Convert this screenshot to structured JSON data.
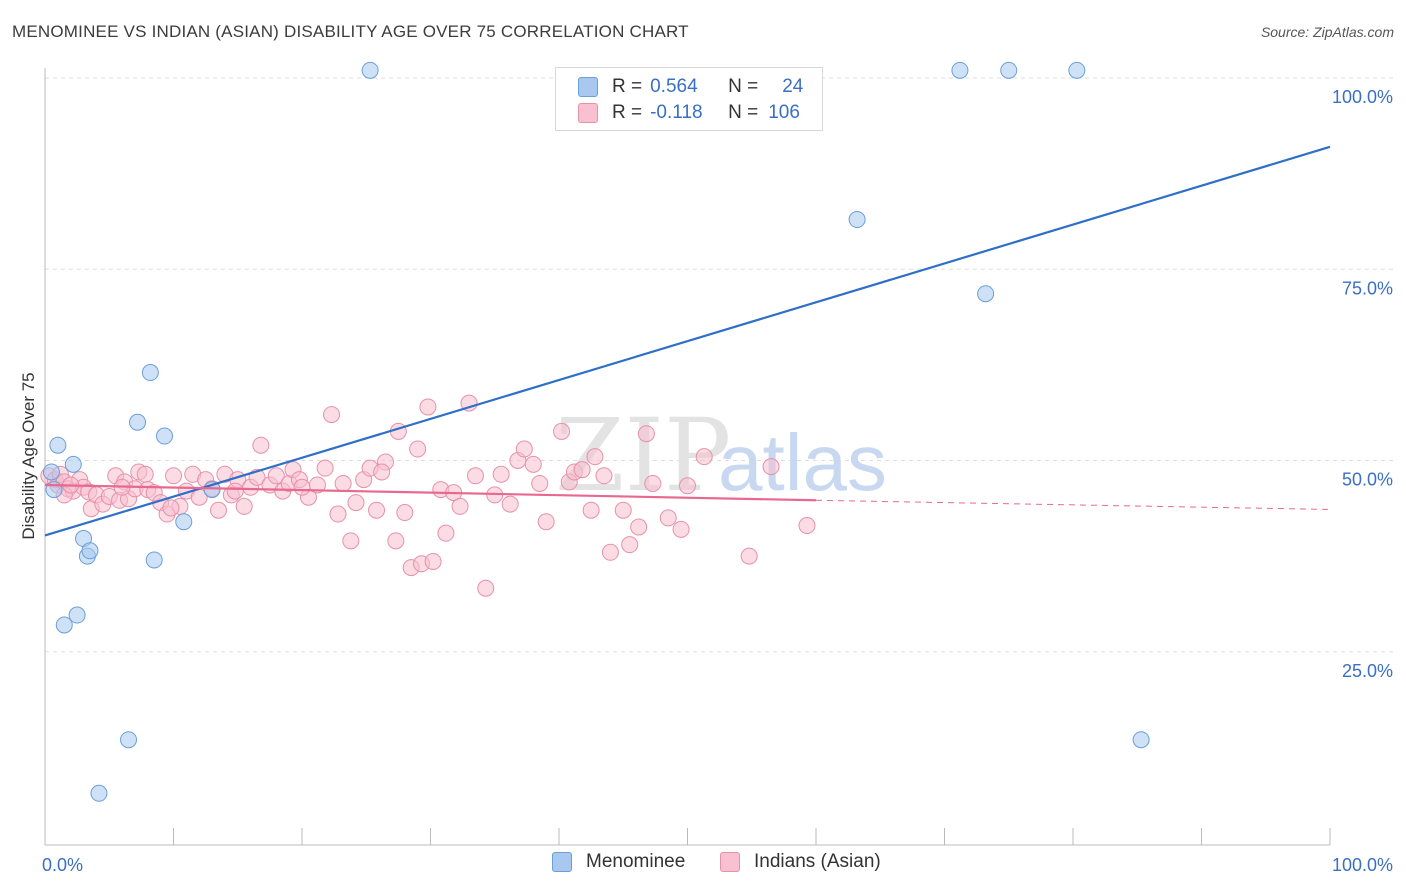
{
  "header": {
    "title": "MENOMINEE VS INDIAN (ASIAN) DISABILITY AGE OVER 75 CORRELATION CHART",
    "source": "Source: ZipAtlas.com"
  },
  "watermark": {
    "zip": "ZIP",
    "atlas": "atlas"
  },
  "legend_stats": [
    {
      "r_label": "R =",
      "r_value": "0.564",
      "n_label": "N =",
      "n_value": "24",
      "color": "#a8c8f0",
      "border": "#6a9fd8"
    },
    {
      "r_label": "R =",
      "r_value": "-0.118",
      "n_label": "N =",
      "n_value": "106",
      "color": "#f8c0d0",
      "border": "#e890aa"
    }
  ],
  "colors": {
    "blue_fill": "#a8c8f0",
    "blue_stroke": "#6a9fd8",
    "blue_line": "#2f6fc8",
    "pink_fill": "#f8c0d0",
    "pink_stroke": "#e890aa",
    "pink_line": "#e86890",
    "grid": "#dddddd",
    "tick_label": "#3a6fc4"
  },
  "chart_data": {
    "type": "scatter",
    "title": "MENOMINEE VS INDIAN (ASIAN) DISABILITY AGE OVER 75 CORRELATION CHART",
    "xlabel": "",
    "ylabel": "Disability Age Over 75",
    "xlim": [
      0,
      100
    ],
    "ylim": [
      0,
      103
    ],
    "x_tick_labels": [
      {
        "value": 0,
        "label": "0.0%"
      },
      {
        "value": 100,
        "label": "100.0%"
      }
    ],
    "y_tick_labels": [
      {
        "value": 25,
        "label": "25.0%"
      },
      {
        "value": 50,
        "label": "50.0%"
      },
      {
        "value": 75,
        "label": "75.0%"
      },
      {
        "value": 100,
        "label": "100.0%"
      }
    ],
    "grid": true,
    "legend_position": "bottom",
    "series": [
      {
        "name": "Menominee",
        "points": [
          [
            0.5,
            48.5
          ],
          [
            0.7,
            46.2
          ],
          [
            1.0,
            52.0
          ],
          [
            1.5,
            28.5
          ],
          [
            2.2,
            49.5
          ],
          [
            2.5,
            29.8
          ],
          [
            3.0,
            39.8
          ],
          [
            3.3,
            37.5
          ],
          [
            3.5,
            38.2
          ],
          [
            4.2,
            6.5
          ],
          [
            6.5,
            13.5
          ],
          [
            7.2,
            55.0
          ],
          [
            8.2,
            61.5
          ],
          [
            8.5,
            37.0
          ],
          [
            9.3,
            53.2
          ],
          [
            10.8,
            42.0
          ],
          [
            13.0,
            46.2
          ],
          [
            25.3,
            101.0
          ],
          [
            63.2,
            81.5
          ],
          [
            71.2,
            101.0
          ],
          [
            73.2,
            71.8
          ],
          [
            75.0,
            101.0
          ],
          [
            80.3,
            101.0
          ],
          [
            85.3,
            13.5
          ]
        ],
        "trend": {
          "x0": 0,
          "y0": 40.2,
          "x1": 100,
          "y1": 91.0
        }
      },
      {
        "name": "Indians (Asian)",
        "points": [
          [
            0.3,
            48.0
          ],
          [
            0.8,
            47.5
          ],
          [
            1.0,
            46.8
          ],
          [
            1.2,
            48.2
          ],
          [
            1.5,
            47.2
          ],
          [
            1.8,
            46.3
          ],
          [
            2.2,
            46.0
          ],
          [
            2.7,
            47.5
          ],
          [
            3.0,
            46.5
          ],
          [
            3.4,
            45.9
          ],
          [
            3.6,
            43.7
          ],
          [
            4.0,
            45.5
          ],
          [
            4.5,
            44.3
          ],
          [
            5.0,
            45.3
          ],
          [
            5.5,
            48.0
          ],
          [
            5.8,
            44.8
          ],
          [
            6.2,
            47.2
          ],
          [
            6.5,
            45.0
          ],
          [
            7.0,
            46.3
          ],
          [
            7.3,
            48.5
          ],
          [
            7.8,
            48.2
          ],
          [
            8.0,
            46.2
          ],
          [
            8.5,
            45.8
          ],
          [
            9.0,
            44.5
          ],
          [
            9.5,
            43.0
          ],
          [
            10.0,
            48.0
          ],
          [
            10.5,
            44.0
          ],
          [
            11.0,
            46.0
          ],
          [
            11.5,
            48.2
          ],
          [
            12.0,
            45.2
          ],
          [
            12.5,
            47.5
          ],
          [
            13.0,
            46.3
          ],
          [
            13.5,
            43.5
          ],
          [
            14.0,
            48.2
          ],
          [
            14.5,
            45.5
          ],
          [
            15.0,
            47.5
          ],
          [
            15.5,
            44.0
          ],
          [
            16.0,
            46.5
          ],
          [
            16.5,
            47.8
          ],
          [
            16.8,
            52.0
          ],
          [
            17.5,
            46.8
          ],
          [
            18.0,
            48.0
          ],
          [
            18.5,
            46.0
          ],
          [
            19.0,
            47.0
          ],
          [
            19.3,
            48.8
          ],
          [
            19.8,
            47.5
          ],
          [
            20.5,
            45.2
          ],
          [
            21.2,
            46.8
          ],
          [
            21.8,
            49.0
          ],
          [
            22.3,
            56.0
          ],
          [
            22.8,
            43.0
          ],
          [
            23.2,
            47.0
          ],
          [
            23.8,
            39.5
          ],
          [
            24.2,
            44.5
          ],
          [
            24.8,
            47.5
          ],
          [
            25.3,
            49.0
          ],
          [
            25.8,
            43.5
          ],
          [
            26.5,
            49.8
          ],
          [
            27.3,
            39.5
          ],
          [
            27.5,
            53.8
          ],
          [
            28.0,
            43.2
          ],
          [
            28.5,
            36.0
          ],
          [
            29.0,
            51.5
          ],
          [
            29.3,
            36.5
          ],
          [
            29.8,
            57.0
          ],
          [
            30.2,
            36.8
          ],
          [
            30.8,
            46.2
          ],
          [
            31.2,
            40.5
          ],
          [
            31.8,
            45.8
          ],
          [
            32.3,
            44.0
          ],
          [
            33.0,
            57.5
          ],
          [
            34.3,
            33.3
          ],
          [
            35.0,
            45.5
          ],
          [
            35.5,
            48.2
          ],
          [
            36.2,
            44.3
          ],
          [
            36.8,
            50.0
          ],
          [
            37.3,
            51.5
          ],
          [
            38.0,
            49.5
          ],
          [
            38.5,
            47.0
          ],
          [
            39.0,
            42.0
          ],
          [
            40.2,
            53.8
          ],
          [
            40.8,
            47.2
          ],
          [
            41.2,
            48.5
          ],
          [
            41.8,
            48.8
          ],
          [
            42.5,
            43.5
          ],
          [
            42.8,
            50.5
          ],
          [
            43.5,
            48.0
          ],
          [
            44.0,
            38.0
          ],
          [
            45.0,
            43.5
          ],
          [
            45.5,
            39.0
          ],
          [
            46.2,
            41.3
          ],
          [
            46.8,
            53.5
          ],
          [
            47.3,
            47.0
          ],
          [
            48.5,
            42.5
          ],
          [
            49.5,
            41.0
          ],
          [
            50.0,
            46.7
          ],
          [
            51.3,
            50.5
          ],
          [
            54.8,
            37.5
          ],
          [
            56.5,
            49.2
          ],
          [
            59.3,
            41.5
          ],
          [
            1.5,
            45.5
          ],
          [
            2.0,
            46.8
          ],
          [
            6.0,
            46.5
          ],
          [
            9.8,
            43.8
          ],
          [
            14.8,
            46.0
          ],
          [
            20.0,
            46.5
          ],
          [
            26.2,
            48.5
          ],
          [
            33.5,
            48.0
          ]
        ],
        "trend": {
          "x0": 0,
          "y0": 46.8,
          "x1": 60,
          "y1": 44.8,
          "dashed_to_x": 100,
          "dashed_to_y": 43.6
        }
      }
    ]
  }
}
